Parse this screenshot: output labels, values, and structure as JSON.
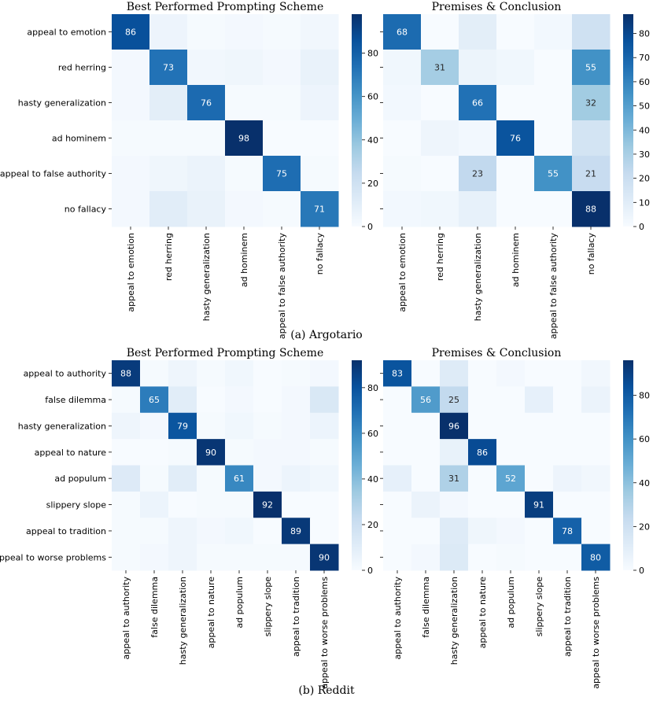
{
  "captions": {
    "argotario": "(a) Argotario",
    "reddit": "(b) Reddit"
  },
  "colors": {
    "low": "#f7fbff",
    "high": "#08306b",
    "text_dark": "#262626",
    "text_light": "#ffffff"
  },
  "chart_data": [
    {
      "type": "heatmap",
      "dataset": "Argotario",
      "title": "Best Performed Prompting Scheme",
      "row_labels": [
        "appeal to emotion",
        "red herring",
        "hasty generalization",
        "ad hominem",
        "appeal to false authority",
        "no fallacy"
      ],
      "col_labels": [
        "appeal to emotion",
        "red herring",
        "hasty generalization",
        "ad hominem",
        "appeal to false authority",
        "no fallacy"
      ],
      "values": [
        [
          86,
          5,
          1,
          2,
          1,
          3
        ],
        [
          2,
          73,
          3,
          4,
          2,
          7
        ],
        [
          2,
          10,
          76,
          1,
          1,
          5
        ],
        [
          1,
          1,
          1,
          98,
          0,
          0
        ],
        [
          2,
          4,
          6,
          1,
          75,
          1
        ],
        [
          2,
          11,
          7,
          2,
          1,
          71
        ]
      ],
      "labels": [
        [
          "86",
          "",
          "",
          "",
          "",
          ""
        ],
        [
          "",
          "73",
          "",
          "",
          "",
          ""
        ],
        [
          "",
          "",
          "76",
          "",
          "",
          ""
        ],
        [
          "",
          "",
          "",
          "98",
          "",
          ""
        ],
        [
          "",
          "",
          "",
          "",
          "75",
          ""
        ],
        [
          "",
          "",
          "",
          "",
          "",
          "71"
        ]
      ],
      "colorbar": {
        "min": 0,
        "max": 98,
        "ticks": [
          0,
          20,
          40,
          60,
          80
        ]
      }
    },
    {
      "type": "heatmap",
      "dataset": "Argotario",
      "title": "Premises & Conclusion",
      "row_labels": [
        "appeal to emotion",
        "red herring",
        "hasty generalization",
        "ad hominem",
        "appeal to false authority",
        "no fallacy"
      ],
      "col_labels": [
        "appeal to emotion",
        "red herring",
        "hasty generalization",
        "ad hominem",
        "appeal to false authority",
        "no fallacy"
      ],
      "values": [
        [
          68,
          0,
          9,
          0,
          2,
          18
        ],
        [
          3,
          31,
          5,
          3,
          0,
          55
        ],
        [
          2,
          0,
          66,
          0,
          0,
          32
        ],
        [
          0,
          4,
          2,
          76,
          0,
          16
        ],
        [
          1,
          0,
          23,
          0,
          55,
          21
        ],
        [
          2,
          3,
          7,
          0,
          0,
          88
        ]
      ],
      "labels": [
        [
          "68",
          "",
          "",
          "",
          "",
          ""
        ],
        [
          "",
          "31",
          "",
          "",
          "",
          "55"
        ],
        [
          "",
          "",
          "66",
          "",
          "",
          "32"
        ],
        [
          "",
          "",
          "",
          "76",
          "",
          ""
        ],
        [
          "",
          "",
          "23",
          "",
          "55",
          "21"
        ],
        [
          "",
          "",
          "",
          "",
          "",
          "88"
        ]
      ],
      "colorbar": {
        "min": 0,
        "max": 88,
        "ticks": [
          0,
          10,
          20,
          30,
          40,
          50,
          60,
          70,
          80
        ]
      }
    },
    {
      "type": "heatmap",
      "dataset": "Reddit",
      "title": "Best Performed Prompting Scheme",
      "row_labels": [
        "appeal to authority",
        "false dilemma",
        "hasty generalization",
        "appeal to nature",
        "ad populum",
        "slippery slope",
        "appeal to tradition",
        "appeal to worse problems"
      ],
      "col_labels": [
        "appeal to authority",
        "false dilemma",
        "hasty generalization",
        "appeal to nature",
        "ad populum",
        "slippery slope",
        "appeal to tradition",
        "appeal to worse problems"
      ],
      "values": [
        [
          88,
          1,
          4,
          1,
          3,
          0,
          1,
          2
        ],
        [
          1,
          65,
          10,
          0,
          2,
          0,
          2,
          14
        ],
        [
          4,
          2,
          79,
          1,
          3,
          1,
          2,
          5
        ],
        [
          0,
          0,
          1,
          90,
          1,
          2,
          2,
          1
        ],
        [
          12,
          1,
          10,
          1,
          61,
          2,
          5,
          3
        ],
        [
          1,
          5,
          0,
          1,
          1,
          92,
          0,
          0
        ],
        [
          1,
          1,
          4,
          2,
          3,
          0,
          89,
          0
        ],
        [
          1,
          2,
          4,
          1,
          1,
          1,
          1,
          90
        ]
      ],
      "labels": [
        [
          "88",
          "",
          "",
          "",
          "",
          "",
          "",
          ""
        ],
        [
          "",
          "65",
          "",
          "",
          "",
          "",
          "",
          ""
        ],
        [
          "",
          "",
          "79",
          "",
          "",
          "",
          "",
          ""
        ],
        [
          "",
          "",
          "",
          "90",
          "",
          "",
          "",
          ""
        ],
        [
          "",
          "",
          "",
          "",
          "61",
          "",
          "",
          ""
        ],
        [
          "",
          "",
          "",
          "",
          "",
          "92",
          "",
          ""
        ],
        [
          "",
          "",
          "",
          "",
          "",
          "",
          "89",
          ""
        ],
        [
          "",
          "",
          "",
          "",
          "",
          "",
          "",
          "90"
        ]
      ],
      "colorbar": {
        "min": 0,
        "max": 92,
        "ticks": [
          0,
          20,
          40,
          60,
          80
        ]
      }
    },
    {
      "type": "heatmap",
      "dataset": "Reddit",
      "title": "Premises & Conclusion",
      "row_labels": [
        "appeal to authority",
        "false dilemma",
        "hasty generalization",
        "appeal to nature",
        "ad populum",
        "slippery slope",
        "appeal to tradition",
        "appeal to worse problems"
      ],
      "col_labels": [
        "appeal to authority",
        "false dilemma",
        "hasty generalization",
        "appeal to nature",
        "ad populum",
        "slippery slope",
        "appeal to tradition",
        "appeal to worse problems"
      ],
      "values": [
        [
          83,
          0,
          12,
          0,
          2,
          0,
          0,
          3
        ],
        [
          0,
          56,
          25,
          0,
          0,
          8,
          0,
          6
        ],
        [
          0,
          0,
          96,
          0,
          0,
          0,
          0,
          0
        ],
        [
          0,
          0,
          7,
          86,
          0,
          0,
          0,
          0
        ],
        [
          8,
          0,
          31,
          0,
          52,
          0,
          5,
          3
        ],
        [
          0,
          6,
          2,
          0,
          0,
          91,
          0,
          0
        ],
        [
          0,
          0,
          12,
          4,
          2,
          0,
          78,
          0
        ],
        [
          0,
          2,
          13,
          0,
          1,
          0,
          0,
          80
        ]
      ],
      "labels": [
        [
          "83",
          "",
          "",
          "",
          "",
          "",
          "",
          ""
        ],
        [
          "",
          "56",
          "25",
          "",
          "",
          "",
          "",
          ""
        ],
        [
          "",
          "",
          "96",
          "",
          "",
          "",
          "",
          ""
        ],
        [
          "",
          "",
          "",
          "86",
          "",
          "",
          "",
          ""
        ],
        [
          "",
          "",
          "31",
          "",
          "52",
          "",
          "",
          ""
        ],
        [
          "",
          "",
          "",
          "",
          "",
          "91",
          "",
          ""
        ],
        [
          "",
          "",
          "",
          "",
          "",
          "",
          "78",
          ""
        ],
        [
          "",
          "",
          "",
          "",
          "",
          "",
          "",
          "80"
        ]
      ],
      "colorbar": {
        "min": 0,
        "max": 96,
        "ticks": [
          0,
          20,
          40,
          60,
          80
        ]
      }
    }
  ]
}
